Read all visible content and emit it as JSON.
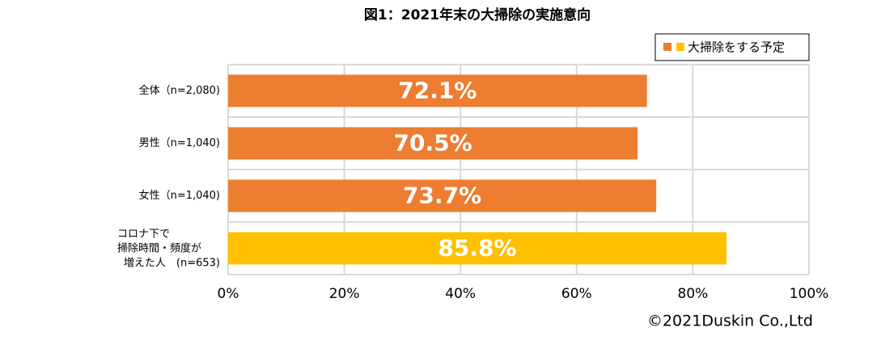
{
  "chart_data": {
    "type": "bar",
    "orientation": "horizontal",
    "title": "図1：2021年末の大掃除の実施意向",
    "categories": [
      "全体（n=2,080)",
      "男性（n=1,040)",
      "女性（n=1,040)",
      "コロナ下で\n掃除時間・頻度が\n増えた人　(n=653)"
    ],
    "series": [
      {
        "name": "大掃除をする予定",
        "colors": [
          "#ED7D31",
          "#ED7D31",
          "#ED7D31",
          "#FFC000"
        ],
        "values": [
          72.1,
          70.5,
          73.7,
          85.8
        ],
        "value_labels": [
          "72.1%",
          "70.5%",
          "73.7%",
          "85.8%"
        ]
      }
    ],
    "xlim": [
      0,
      100
    ],
    "xticks": [
      {
        "value": 0,
        "label": "0%"
      },
      {
        "value": 20,
        "label": "20%"
      },
      {
        "value": 40,
        "label": "40%"
      },
      {
        "value": 60,
        "label": "60%"
      },
      {
        "value": 80,
        "label": "80%"
      },
      {
        "value": 100,
        "label": "100%"
      }
    ],
    "grid": true,
    "legend": "top-right",
    "source": "©2021Duskin Co.,Ltd"
  }
}
